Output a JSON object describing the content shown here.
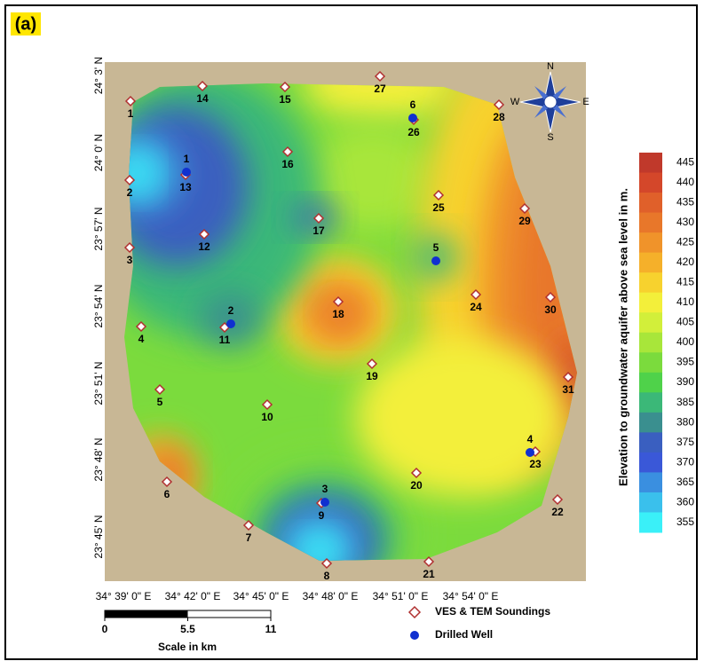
{
  "panel_label": "(a)",
  "lat_labels": [
    "24° 3' N",
    "24° 0' N",
    "23° 57' N",
    "23° 54' N",
    "23° 51' N",
    "23° 48' N",
    "23° 45' N"
  ],
  "lon_labels": [
    "34° 39' 0\" E",
    "34° 42' 0\" E",
    "34° 45' 0\" E",
    "34° 48' 0\" E",
    "34° 51' 0\" E",
    "34° 54' 0\" E"
  ],
  "soundings": [
    "1",
    "2",
    "3",
    "4",
    "5",
    "6",
    "7",
    "8",
    "9",
    "10",
    "11",
    "12",
    "13",
    "14",
    "15",
    "16",
    "17",
    "18",
    "19",
    "20",
    "21",
    "22",
    "23",
    "24",
    "25",
    "26",
    "27",
    "28",
    "29",
    "30",
    "31"
  ],
  "wells": [
    "1",
    "2",
    "3",
    "4",
    "5",
    "6"
  ],
  "compass": {
    "north": "N",
    "east": "E",
    "south": "S",
    "west": "W"
  },
  "colorbar": {
    "title": "Elevation to groundwater aquifer above sea level in m.",
    "ticks": [
      445,
      440,
      435,
      430,
      425,
      420,
      415,
      410,
      405,
      400,
      395,
      390,
      385,
      380,
      375,
      370,
      365,
      360,
      355
    ],
    "colors": [
      "#c0392b",
      "#d4472a",
      "#e0602a",
      "#e8772a",
      "#f0932a",
      "#f5b02a",
      "#f7d22e",
      "#f3ef3a",
      "#d2ef3a",
      "#a8e63a",
      "#7bdb3d",
      "#4fd24a",
      "#3bb878",
      "#3a8f8f",
      "#3a5fc0",
      "#3a58d8",
      "#3a8fe0",
      "#3ac0ec",
      "#3af0f8"
    ]
  },
  "legend": {
    "soundings": "VES & TEM Soundings",
    "wells": "Drilled Well"
  },
  "scale": {
    "ticks": [
      0,
      5.5,
      11
    ],
    "unit": "Scale in km"
  }
}
